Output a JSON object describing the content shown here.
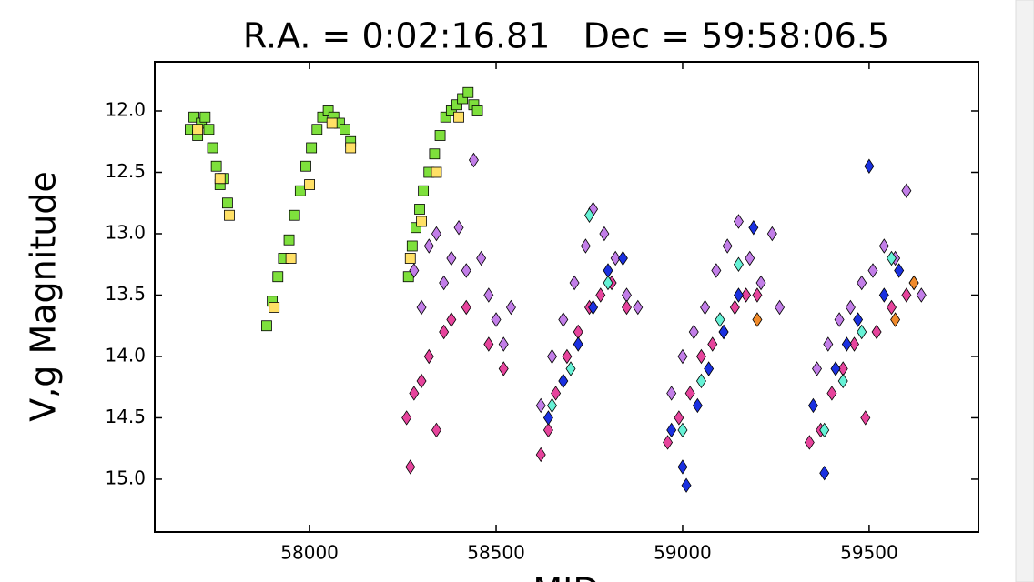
{
  "chart_data": {
    "type": "scatter",
    "title": "R.A. = 0:02:16.81   Dec = 59:58:06.5",
    "xlabel": "MJD",
    "ylabel": "V,g Magnitude",
    "xlim": [
      57585,
      59793
    ],
    "ylim": [
      15.43,
      11.6
    ],
    "xticks": [
      58000,
      58500,
      59000,
      59500
    ],
    "yticks": [
      {
        "value": 12,
        "label": "12.0"
      },
      12.5,
      {
        "value": 13,
        "label": "13.0"
      },
      13.5,
      {
        "value": 14,
        "label": "14.0"
      },
      14.5,
      {
        "value": 15,
        "label": "15.0"
      }
    ],
    "series": [
      {
        "color": "#7ee03c",
        "marker": "square",
        "x": [
          57680,
          57690,
          57700,
          57710,
          57720,
          57730,
          57740,
          57750,
          57760,
          57770,
          57780,
          57885,
          57900,
          57915,
          57930,
          57945,
          57960,
          57975,
          57990,
          58005,
          58020,
          58035,
          58050,
          58065,
          58080,
          58095,
          58110,
          58265,
          58275,
          58285,
          58295,
          58305,
          58320,
          58335,
          58350,
          58365,
          58380,
          58395,
          58410,
          58425,
          58440,
          58450
        ],
        "values": [
          12.15,
          12.05,
          12.2,
          12.1,
          12.05,
          12.15,
          12.3,
          12.45,
          12.6,
          12.55,
          12.75,
          13.75,
          13.55,
          13.35,
          13.2,
          13.05,
          12.85,
          12.65,
          12.45,
          12.3,
          12.15,
          12.05,
          12.0,
          12.05,
          12.1,
          12.15,
          12.25,
          13.35,
          13.1,
          12.95,
          12.8,
          12.65,
          12.5,
          12.35,
          12.2,
          12.05,
          12.0,
          11.95,
          11.9,
          11.85,
          11.95,
          12.0
        ]
      },
      {
        "color": "#ffe066",
        "marker": "square",
        "x": [
          57700,
          57760,
          57785,
          57905,
          57950,
          58000,
          58060,
          58110,
          58270,
          58300,
          58340,
          58400
        ],
        "values": [
          12.15,
          12.55,
          12.85,
          13.6,
          13.2,
          12.6,
          12.1,
          12.3,
          13.2,
          12.9,
          12.5,
          12.05
        ]
      },
      {
        "color": "#c27ee8",
        "marker": "diamond",
        "x": [
          58280,
          58300,
          58320,
          58340,
          58360,
          58380,
          58400,
          58420,
          58440,
          58460,
          58480,
          58500,
          58520,
          58540,
          58620,
          58650,
          58680,
          58710,
          58740,
          58760,
          58790,
          58820,
          58850,
          58880,
          58970,
          59000,
          59030,
          59060,
          59090,
          59120,
          59150,
          59180,
          59210,
          59240,
          59260,
          59360,
          59390,
          59420,
          59450,
          59480,
          59510,
          59540,
          59570,
          59600,
          59620,
          59640
        ],
        "values": [
          13.3,
          13.6,
          13.1,
          13.0,
          13.4,
          13.2,
          12.95,
          13.3,
          12.4,
          13.2,
          13.5,
          13.7,
          13.9,
          13.6,
          14.4,
          14.0,
          13.7,
          13.4,
          13.1,
          12.8,
          13.0,
          13.2,
          13.5,
          13.6,
          14.3,
          14.0,
          13.8,
          13.6,
          13.3,
          13.1,
          12.9,
          13.2,
          13.4,
          13.0,
          13.6,
          14.1,
          13.9,
          13.7,
          13.6,
          13.4,
          13.3,
          13.1,
          13.2,
          12.65,
          13.4,
          13.5
        ]
      },
      {
        "color": "#e6449c",
        "marker": "diamond",
        "x": [
          58260,
          58270,
          58280,
          58300,
          58320,
          58340,
          58360,
          58380,
          58420,
          58480,
          58520,
          58620,
          58640,
          58660,
          58690,
          58720,
          58750,
          58780,
          58810,
          58850,
          58960,
          58990,
          59020,
          59050,
          59080,
          59110,
          59140,
          59170,
          59200,
          59340,
          59370,
          59400,
          59430,
          59460,
          59490,
          59520,
          59560,
          59600
        ],
        "values": [
          14.5,
          14.9,
          14.3,
          14.2,
          14.0,
          14.6,
          13.8,
          13.7,
          13.6,
          13.9,
          14.1,
          14.8,
          14.6,
          14.3,
          14.0,
          13.8,
          13.6,
          13.5,
          13.4,
          13.6,
          14.7,
          14.5,
          14.3,
          14.0,
          13.9,
          13.8,
          13.6,
          13.5,
          13.5,
          14.7,
          14.6,
          14.3,
          14.1,
          13.9,
          14.5,
          13.8,
          13.6,
          13.5
        ]
      },
      {
        "color": "#1a30e0",
        "marker": "diamond",
        "x": [
          58640,
          58680,
          58720,
          58760,
          58800,
          58840,
          58970,
          59000,
          59010,
          59040,
          59070,
          59110,
          59150,
          59190,
          59350,
          59380,
          59410,
          59440,
          59470,
          59500,
          59540,
          59580
        ],
        "values": [
          14.5,
          14.2,
          13.9,
          13.6,
          13.3,
          13.2,
          14.6,
          14.9,
          15.05,
          14.4,
          14.1,
          13.8,
          13.5,
          12.95,
          14.4,
          14.95,
          14.1,
          13.9,
          13.7,
          12.45,
          13.5,
          13.3
        ]
      },
      {
        "color": "#66f2d6",
        "marker": "diamond",
        "x": [
          58650,
          58700,
          58750,
          58800,
          59000,
          59050,
          59100,
          59150,
          59380,
          59430,
          59480,
          59560
        ],
        "values": [
          14.4,
          14.1,
          12.85,
          13.4,
          14.6,
          14.2,
          13.7,
          13.25,
          14.6,
          14.2,
          13.8,
          13.2
        ]
      },
      {
        "color": "#f08a2a",
        "marker": "diamond",
        "x": [
          59200,
          59570,
          59620
        ],
        "values": [
          13.7,
          13.7,
          13.4
        ]
      }
    ]
  }
}
